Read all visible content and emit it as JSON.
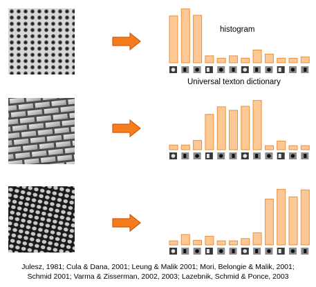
{
  "labels": {
    "histogram": "histogram",
    "dictionary": "Universal texton dictionary"
  },
  "citation": {
    "line1": "Julesz, 1981; Cula & Dana, 2001; Leung & Malik 2001; Mori, Belongie & Malik, 2001;",
    "line2": "Schmid 2001; Varma & Zisserman, 2002, 2003; Lazebnik, Schmid & Ponce, 2003"
  },
  "colors": {
    "bar_fill": "#fcc895",
    "bar_stroke": "#e8903c",
    "arrow_fill": "#f57d1e",
    "arrow_stroke": "#d25a0a"
  },
  "chart_data": [
    {
      "type": "bar",
      "texture": "dotted-disc-pattern",
      "ylim": [
        0,
        10
      ],
      "values": [
        8.1,
        9.3,
        8.2,
        1.2,
        0.8,
        1.2,
        0.8,
        2.2,
        1.5,
        0.8,
        0.8,
        1.0
      ]
    },
    {
      "type": "bar",
      "texture": "brick-pattern",
      "ylim": [
        0,
        10
      ],
      "values": [
        0.8,
        0.8,
        1.6,
        6.1,
        7.4,
        6.8,
        7.5,
        8.5,
        0.7,
        1.5,
        0.7,
        0.7
      ]
    },
    {
      "type": "bar",
      "texture": "hexagonal-mesh-pattern",
      "ylim": [
        0,
        10
      ],
      "values": [
        0.7,
        1.8,
        0.8,
        1.5,
        0.7,
        0.7,
        1.1,
        2.1,
        7.9,
        9.6,
        8.3,
        9.5
      ]
    }
  ]
}
